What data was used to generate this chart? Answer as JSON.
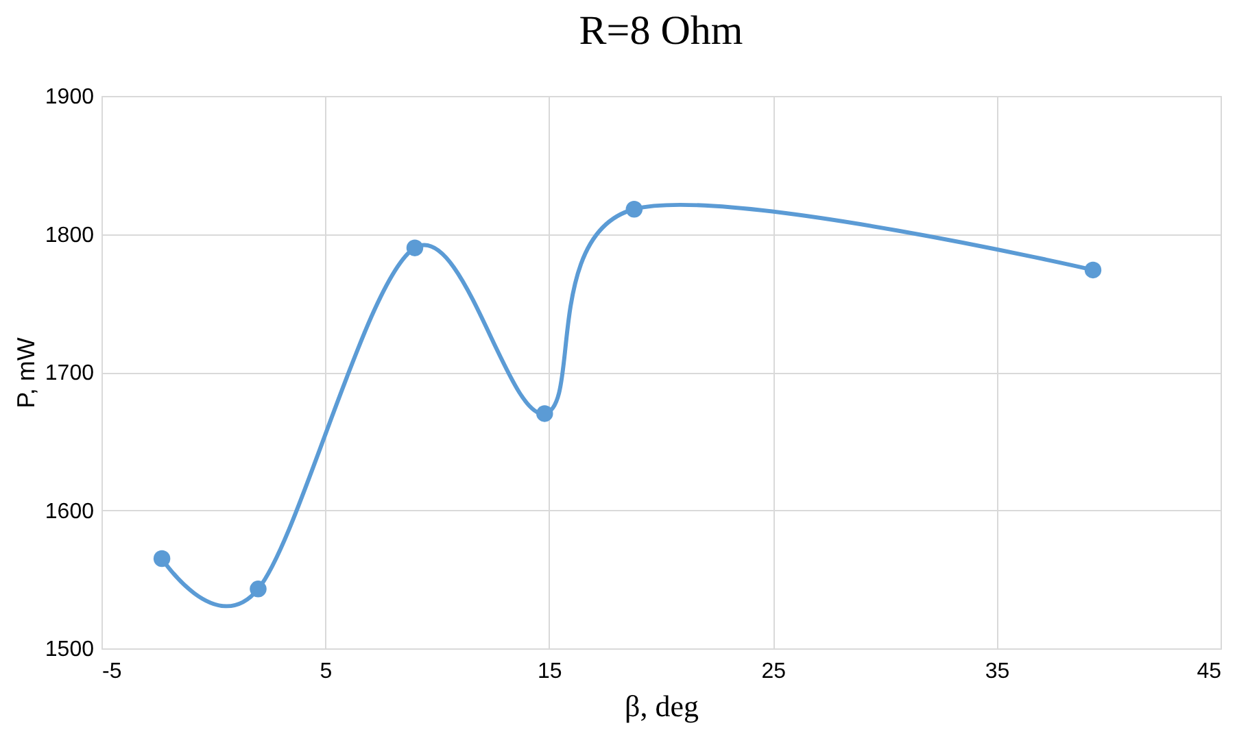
{
  "chart_data": {
    "type": "line",
    "title": "R=8 Ohm",
    "xlabel": "β, deg",
    "ylabel": "P, mW",
    "x": [
      -2.3,
      2,
      9,
      14.8,
      18.8,
      39.3
    ],
    "series": [
      {
        "color": "#5b9bd5",
        "values": [
          1565,
          1543,
          1790,
          1670,
          1818,
          1774
        ]
      }
    ],
    "xlim": [
      -5,
      45
    ],
    "xticks": [
      -5,
      5,
      15,
      25,
      35,
      45
    ],
    "ylim": [
      1500,
      1900
    ],
    "yticks": [
      1500,
      1600,
      1700,
      1800,
      1900
    ],
    "grid": true,
    "marker": "circle",
    "line_style": "solid"
  }
}
